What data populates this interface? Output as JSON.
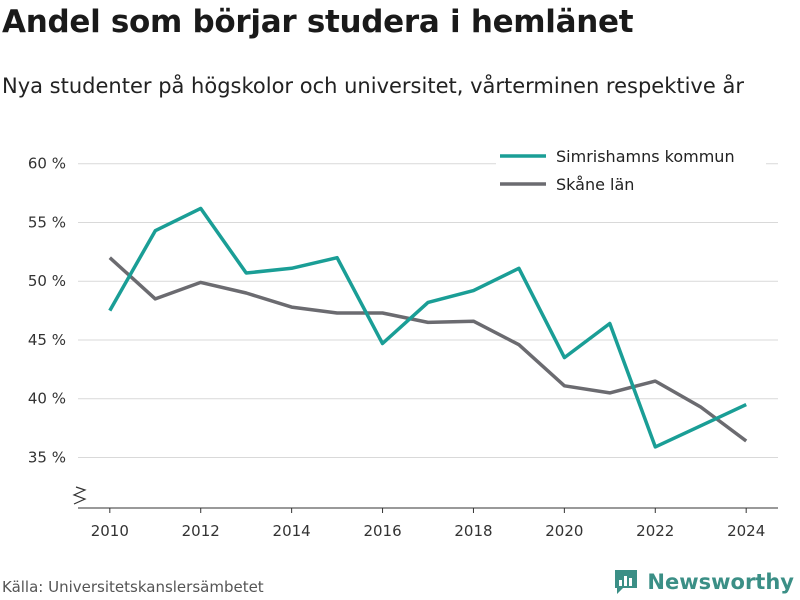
{
  "title": "Andel som börjar studera i hemlänet",
  "subtitle": "Nya studenter på högskolor och universitet, vårterminen respektive år",
  "source": "Källa: Universitetskanslersämbetet",
  "brand": {
    "name": "Newsworthy",
    "color": "#3b8f86"
  },
  "chart_data": {
    "type": "line",
    "x": [
      2010,
      2011,
      2012,
      2013,
      2014,
      2015,
      2016,
      2017,
      2018,
      2019,
      2020,
      2021,
      2022,
      2023,
      2024
    ],
    "series": [
      {
        "name": "Simrishamns kommun",
        "color": "#1a9e96",
        "values": [
          47.5,
          54.3,
          56.2,
          50.7,
          51.1,
          52.0,
          44.7,
          48.2,
          49.2,
          51.1,
          43.5,
          46.4,
          35.9,
          37.7,
          39.5
        ]
      },
      {
        "name": "Skåne län",
        "color": "#6b6b70",
        "values": [
          52.0,
          48.5,
          49.9,
          49.0,
          47.8,
          47.3,
          47.3,
          46.5,
          46.6,
          44.6,
          41.1,
          40.5,
          41.5,
          39.3,
          36.4
        ]
      }
    ],
    "x_ticks": [
      2010,
      2012,
      2014,
      2016,
      2018,
      2020,
      2022,
      2024
    ],
    "x_tick_labels": [
      "2010",
      "2012",
      "2014",
      "2016",
      "2018",
      "2020",
      "2022",
      "2024"
    ],
    "y_ticks": [
      35,
      40,
      45,
      50,
      55,
      60
    ],
    "y_tick_labels": [
      "35 %",
      "40 %",
      "45 %",
      "50 %",
      "55 %",
      "60 %"
    ],
    "ylim": [
      30.7,
      61
    ],
    "xlim": [
      2009.3,
      2024.7
    ],
    "grid": true,
    "legend": "top-right",
    "axis_break": true
  }
}
